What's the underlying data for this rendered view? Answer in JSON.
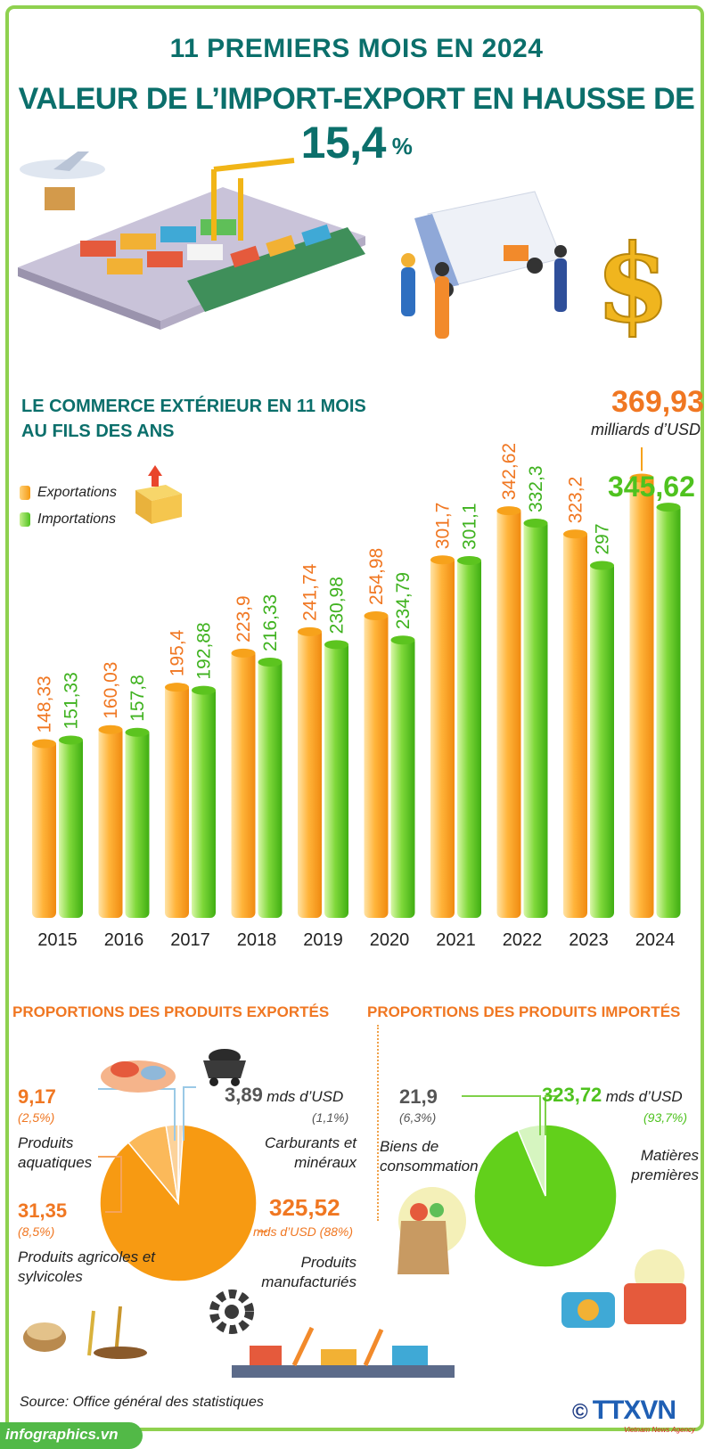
{
  "header": {
    "title_line1": "11 PREMIERS MOIS EN 2024",
    "title_line2_prefix": "VALEUR DE L’IMPORT-EXPORT EN HAUSSE DE ",
    "title_line2_value": "15,4",
    "title_line2_suffix": " %"
  },
  "section": {
    "title_line1": "LE COMMERCE EXTÉRIEUR EN 11 MOIS",
    "title_line2": "AU FILS DES ANS",
    "peak_value": "369,93",
    "peak_unit": "milliards d’USD",
    "import_highlight": "345,62"
  },
  "legend": {
    "exports": "Exportations",
    "imports": "Importations"
  },
  "colors": {
    "export": "#f7a21b",
    "import": "#66cc1f",
    "teal": "#0b6f6b",
    "orange_text": "#f07722"
  },
  "chart_data": {
    "type": "bar",
    "title": "LE COMMERCE EXTÉRIEUR EN 11 MOIS AU FILS DES ANS",
    "ylabel": "milliards d’USD",
    "categories": [
      "2015",
      "2016",
      "2017",
      "2018",
      "2019",
      "2020",
      "2021",
      "2022",
      "2023",
      "2024"
    ],
    "series": [
      {
        "name": "Exportations",
        "values": [
          148.33,
          160.03,
          195.4,
          223.9,
          241.74,
          254.98,
          301.7,
          342.62,
          323.2,
          369.93
        ],
        "labels": [
          "148,33",
          "160,03",
          "195,4",
          "223,9",
          "241,74",
          "254,98",
          "301,7",
          "342,62",
          "323,2",
          ""
        ]
      },
      {
        "name": "Importations",
        "values": [
          151.33,
          157.8,
          192.88,
          216.33,
          230.98,
          234.79,
          301.1,
          332.3,
          297,
          345.62
        ],
        "labels": [
          "151,33",
          "157,8",
          "192,88",
          "216,33",
          "230,98",
          "234,79",
          "301,1",
          "332,3",
          "297",
          ""
        ]
      }
    ],
    "ylim": [
      0,
      370
    ]
  },
  "exports_breakdown": {
    "title": "PROPORTIONS DES PRODUITS EXPORTÉS",
    "unit": "mds d’USD",
    "items": [
      {
        "name": "Produits manufacturiés",
        "value": "325,52",
        "unit": "mds d’USD (88%)",
        "pct": 88
      },
      {
        "name": "Produits agricoles et sylvicoles",
        "value": "31,35",
        "share": "(8,5%)",
        "pct": 8.5
      },
      {
        "name": "Produits aquatiques",
        "value": "9,17",
        "share": "(2,5%)",
        "pct": 2.5
      },
      {
        "name": "Carburants et minéraux",
        "value": "3,89",
        "share": "(1,1%)",
        "pct": 1.1
      }
    ]
  },
  "imports_breakdown": {
    "title": "PROPORTIONS DES PRODUITS IMPORTÉS",
    "unit": "mds d’USD",
    "items": [
      {
        "name": "Matières premières",
        "value": "323,72",
        "share": "(93,7%)",
        "pct": 93.7
      },
      {
        "name": "Biens de consommation",
        "value": "21,9",
        "share": "(6,3%)",
        "pct": 6.3
      }
    ]
  },
  "footer": {
    "source": "Source: Office général des statistiques",
    "site": "infographics.vn",
    "logo": "TTXVN",
    "logo_sub": "Vietnam News Agency"
  }
}
